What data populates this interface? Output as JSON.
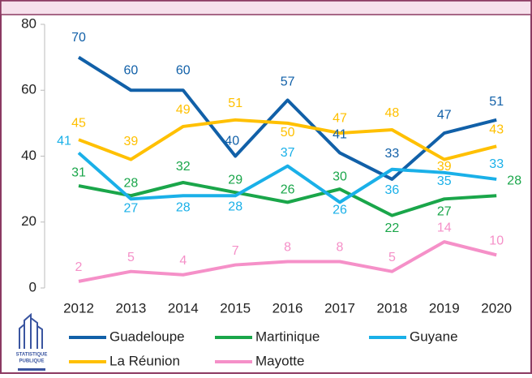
{
  "chart_data": {
    "type": "line",
    "categories": [
      "2012",
      "2013",
      "2014",
      "2015",
      "2016",
      "2017",
      "2018",
      "2019",
      "2020"
    ],
    "series": [
      {
        "name": "Guadeloupe",
        "color": "#1160a8",
        "values": [
          70,
          60,
          60,
          40,
          57,
          41,
          33,
          47,
          51
        ]
      },
      {
        "name": "Martinique",
        "color": "#1aa64a",
        "values": [
          31,
          28,
          32,
          29,
          26,
          30,
          22,
          27,
          28
        ]
      },
      {
        "name": "Guyane",
        "color": "#1ab0e8",
        "values": [
          41,
          27,
          28,
          28,
          37,
          26,
          36,
          35,
          33
        ]
      },
      {
        "name": "La Réunion",
        "color": "#ffc000",
        "values": [
          45,
          39,
          49,
          51,
          50,
          47,
          48,
          39,
          43
        ]
      },
      {
        "name": "Mayotte",
        "color": "#f590c8",
        "values": [
          2,
          5,
          4,
          7,
          8,
          8,
          5,
          14,
          10
        ]
      }
    ],
    "ylim": [
      0,
      80
    ],
    "yticks": [
      0,
      20,
      40,
      60,
      80
    ],
    "grid": false,
    "legend": "bottom",
    "logo": [
      "STATISTIQUE",
      "PUBLIQUE"
    ]
  }
}
